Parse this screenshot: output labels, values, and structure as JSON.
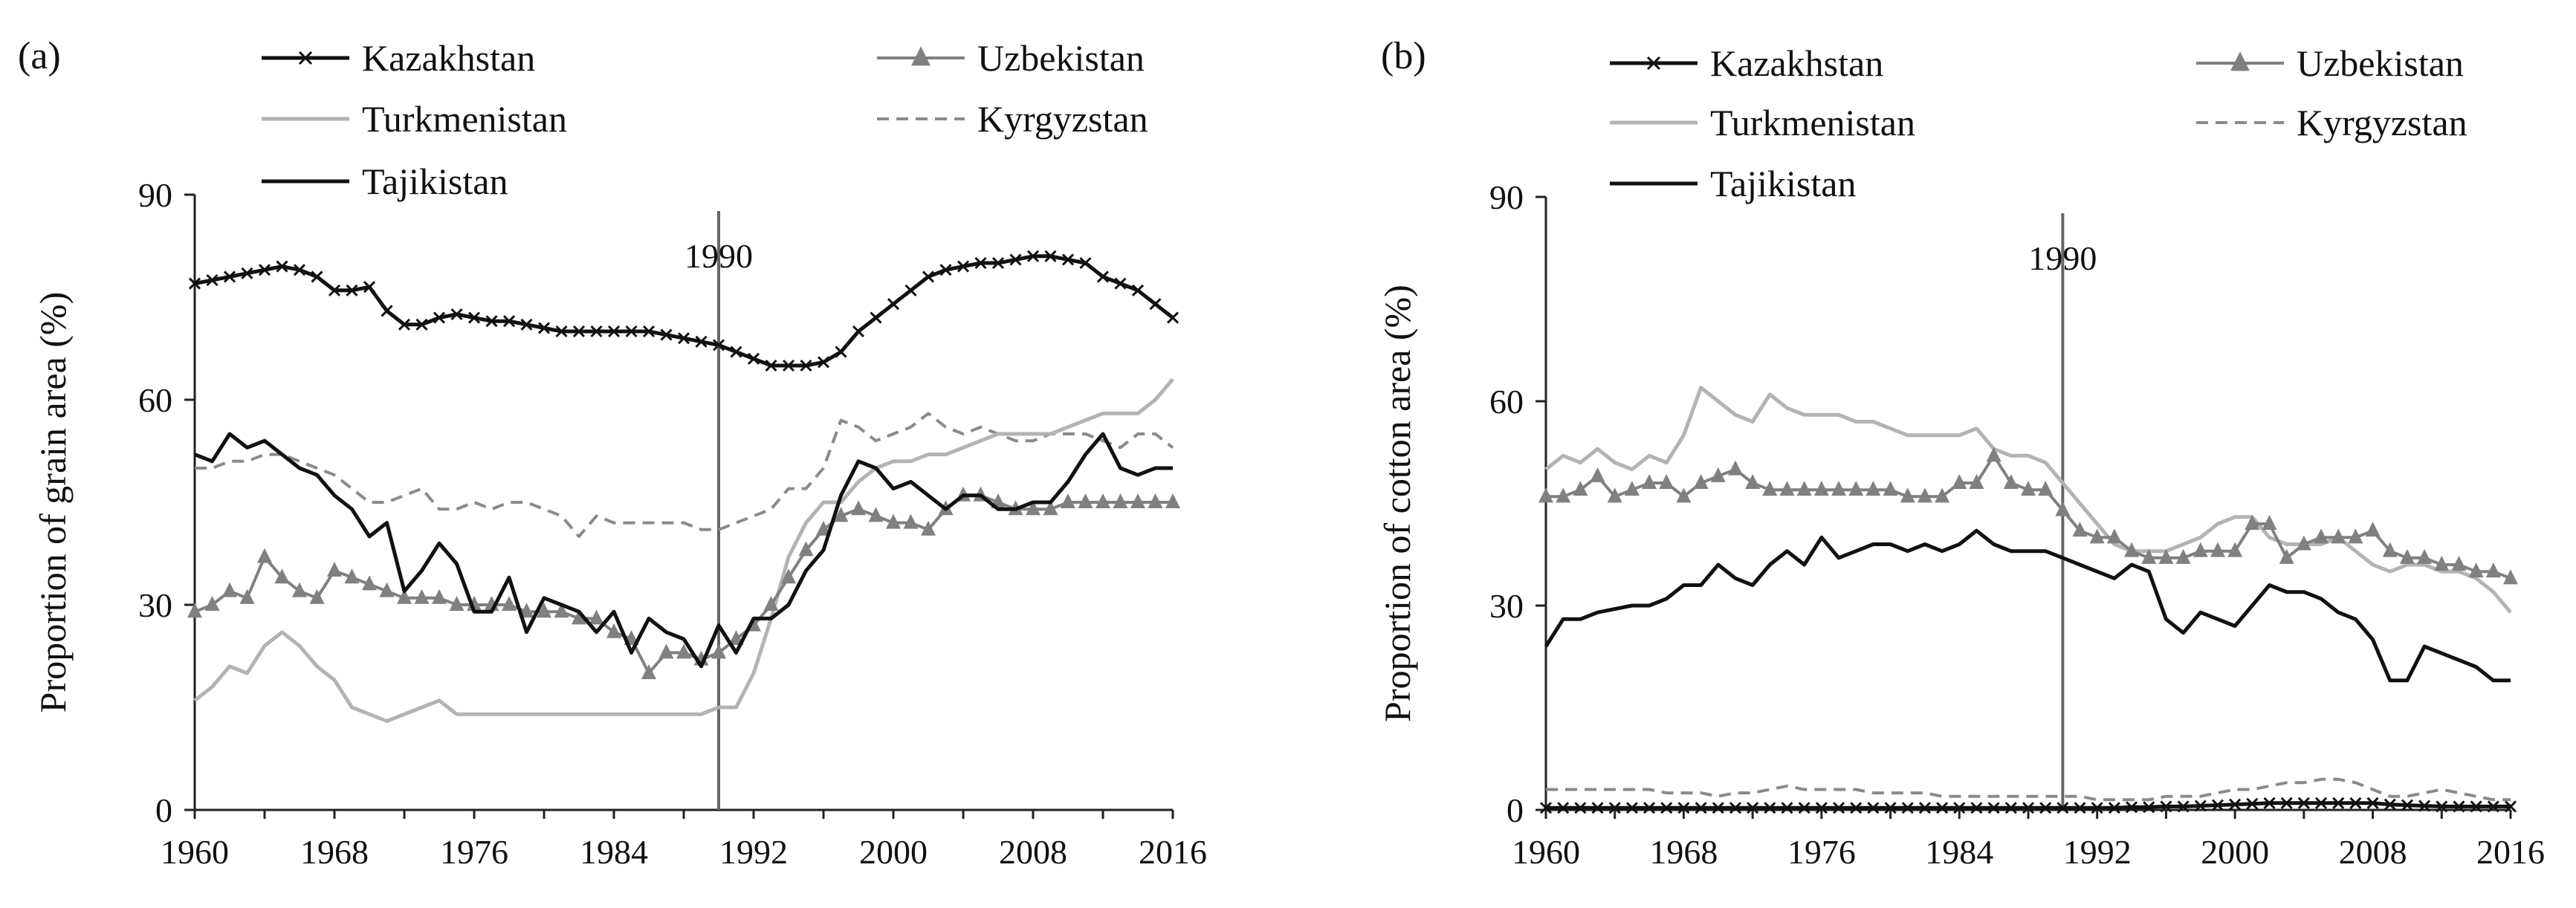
{
  "chart_data": [
    {
      "type": "line",
      "panel": "(a)",
      "ylabel": "Proportion of grain area (%)",
      "xlabel": "",
      "xlim": [
        1960,
        2016
      ],
      "ylim": [
        0,
        90
      ],
      "xticks": [
        "1960",
        "1968",
        "1976",
        "1984",
        "1992",
        "2000",
        "2008",
        "2016"
      ],
      "yticks": [
        "0",
        "30",
        "60",
        "90"
      ],
      "annotation": "1990",
      "annotation_x": 1990,
      "x_start": 1960,
      "series": [
        {
          "name": "Kazakhstan",
          "values": [
            77,
            77.5,
            78,
            78.5,
            79,
            79.5,
            79,
            78,
            76,
            76,
            76.5,
            73,
            71,
            71,
            72,
            72.5,
            72,
            71.5,
            71.5,
            71,
            70.5,
            70,
            70,
            70,
            70,
            70,
            70,
            69.5,
            69,
            68.5,
            68,
            67,
            66,
            65,
            65,
            65,
            65.5,
            67,
            70,
            72,
            74,
            76,
            78,
            79,
            79.5,
            80,
            80,
            80.5,
            81,
            81,
            80.5,
            80,
            78,
            77,
            76,
            74,
            72
          ]
        },
        {
          "name": "Turkmenistan",
          "values": [
            16,
            18,
            21,
            20,
            24,
            26,
            24,
            21,
            19,
            15,
            14,
            13,
            14,
            15,
            16,
            14,
            14,
            14,
            14,
            14,
            14,
            14,
            14,
            14,
            14,
            14,
            14,
            14,
            14,
            14,
            15,
            15,
            20,
            28,
            37,
            42,
            45,
            45,
            48,
            50,
            51,
            51,
            52,
            52,
            53,
            54,
            55,
            55,
            55,
            55,
            56,
            57,
            58,
            58,
            58,
            60,
            63
          ]
        },
        {
          "name": "Tajikistan",
          "values": [
            52,
            51,
            55,
            53,
            54,
            52,
            50,
            49,
            46,
            44,
            40,
            42,
            32,
            35,
            39,
            36,
            29,
            29,
            34,
            26,
            31,
            30,
            29,
            26,
            29,
            23,
            28,
            26,
            25,
            21,
            27,
            23,
            28,
            28,
            30,
            35,
            38,
            46,
            51,
            50,
            47,
            48,
            46,
            44,
            46,
            46,
            44,
            44,
            45,
            45,
            48,
            52,
            55,
            50,
            49,
            50,
            50
          ]
        },
        {
          "name": "Uzbekistan",
          "values": [
            29,
            30,
            32,
            31,
            37,
            34,
            32,
            31,
            35,
            34,
            33,
            32,
            31,
            31,
            31,
            30,
            30,
            30,
            30,
            29,
            29,
            29,
            28,
            28,
            26,
            25,
            20,
            23,
            23,
            22,
            23,
            25,
            27,
            30,
            34,
            38,
            41,
            43,
            44,
            43,
            42,
            42,
            41,
            44,
            46,
            46,
            45,
            44,
            44,
            44,
            45,
            45,
            45,
            45,
            45,
            45,
            45
          ]
        },
        {
          "name": "Kyrgyzstan",
          "values": [
            50,
            50,
            51,
            51,
            52,
            52,
            51,
            50,
            49,
            47,
            45,
            45,
            46,
            47,
            44,
            44,
            45,
            44,
            45,
            45,
            44,
            43,
            40,
            43,
            42,
            42,
            42,
            42,
            42,
            41,
            41,
            42,
            43,
            44,
            47,
            47,
            50,
            57,
            56,
            54,
            55,
            56,
            58,
            56,
            55,
            56,
            55,
            54,
            54,
            55,
            55,
            55,
            54,
            53,
            55,
            55,
            53
          ]
        }
      ],
      "legend": [
        "Kazakhstan",
        "Turkmenistan",
        "Tajikistan",
        "Uzbekistan",
        "Kyrgyzstan"
      ]
    },
    {
      "type": "line",
      "panel": "(b)",
      "ylabel": "Proportion of cotton area (%)",
      "xlabel": "",
      "xlim": [
        1960,
        2016
      ],
      "ylim": [
        0,
        90
      ],
      "xticks": [
        "1960",
        "1968",
        "1976",
        "1984",
        "1992",
        "2000",
        "2008",
        "2016"
      ],
      "yticks": [
        "0",
        "30",
        "60",
        "90"
      ],
      "annotation": "1990",
      "annotation_x": 1990,
      "x_start": 1960,
      "series": [
        {
          "name": "Kazakhstan",
          "values": [
            0.3,
            0.3,
            0.3,
            0.3,
            0.3,
            0.3,
            0.3,
            0.3,
            0.3,
            0.3,
            0.3,
            0.3,
            0.3,
            0.3,
            0.3,
            0.3,
            0.3,
            0.3,
            0.3,
            0.3,
            0.3,
            0.3,
            0.3,
            0.3,
            0.3,
            0.3,
            0.3,
            0.3,
            0.3,
            0.3,
            0.3,
            0.3,
            0.3,
            0.3,
            0.4,
            0.4,
            0.5,
            0.5,
            0.6,
            0.7,
            0.8,
            0.9,
            1,
            1,
            1,
            1,
            1,
            1,
            1,
            0.8,
            0.7,
            0.6,
            0.5,
            0.5,
            0.5,
            0.5,
            0.5
          ]
        },
        {
          "name": "Turkmenistan",
          "values": [
            50,
            52,
            51,
            53,
            51,
            50,
            52,
            51,
            55,
            62,
            60,
            58,
            57,
            61,
            59,
            58,
            58,
            58,
            57,
            57,
            56,
            55,
            55,
            55,
            55,
            56,
            53,
            52,
            52,
            51,
            48,
            45,
            42,
            39,
            38,
            38,
            38,
            39,
            40,
            42,
            43,
            43,
            40,
            39,
            39,
            39,
            40,
            38,
            36,
            35,
            36,
            36,
            35,
            35,
            34,
            32,
            29
          ]
        },
        {
          "name": "Tajikistan",
          "values": [
            24,
            28,
            28,
            29,
            29.5,
            30,
            30,
            31,
            33,
            33,
            36,
            34,
            33,
            36,
            38,
            36,
            40,
            37,
            38,
            39,
            39,
            38,
            39,
            38,
            39,
            41,
            39,
            38,
            38,
            38,
            37,
            36,
            35,
            34,
            36,
            35,
            28,
            26,
            29,
            28,
            27,
            30,
            33,
            32,
            32,
            31,
            29,
            28,
            25,
            19,
            19,
            24,
            23,
            22,
            21,
            19,
            19
          ]
        },
        {
          "name": "Uzbekistan",
          "values": [
            46,
            46,
            47,
            49,
            46,
            47,
            48,
            48,
            46,
            48,
            49,
            50,
            48,
            47,
            47,
            47,
            47,
            47,
            47,
            47,
            47,
            46,
            46,
            46,
            48,
            48,
            52,
            48,
            47,
            47,
            44,
            41,
            40,
            40,
            38,
            37,
            37,
            37,
            38,
            38,
            38,
            42,
            42,
            37,
            39,
            40,
            40,
            40,
            41,
            38,
            37,
            37,
            36,
            36,
            35,
            35,
            34
          ]
        },
        {
          "name": "Kyrgyzstan",
          "values": [
            3,
            3,
            3,
            3,
            3,
            3,
            3,
            2.5,
            2.5,
            2.5,
            2,
            2.5,
            2.5,
            3,
            3.5,
            3,
            3,
            3,
            3,
            2.5,
            2.5,
            2.5,
            2.5,
            2,
            2,
            2,
            2,
            2,
            2,
            2,
            2,
            2,
            1.5,
            1.5,
            1.5,
            1.5,
            2,
            2,
            2,
            2.5,
            3,
            3,
            3.5,
            4,
            4,
            4.5,
            4.5,
            4,
            3,
            2,
            2,
            2.5,
            3,
            2.5,
            2,
            1.5,
            1.5
          ]
        }
      ],
      "legend": [
        "Kazakhstan",
        "Turkmenistan",
        "Tajikistan",
        "Uzbekistan",
        "Kyrgyzstan"
      ]
    }
  ],
  "colors": {
    "Kazakhstan": "#111111",
    "Turkmenistan": "#b3b3b3",
    "Tajikistan": "#111111",
    "Uzbekistan": "#808080",
    "Kyrgyzstan": "#8a8a8a"
  }
}
